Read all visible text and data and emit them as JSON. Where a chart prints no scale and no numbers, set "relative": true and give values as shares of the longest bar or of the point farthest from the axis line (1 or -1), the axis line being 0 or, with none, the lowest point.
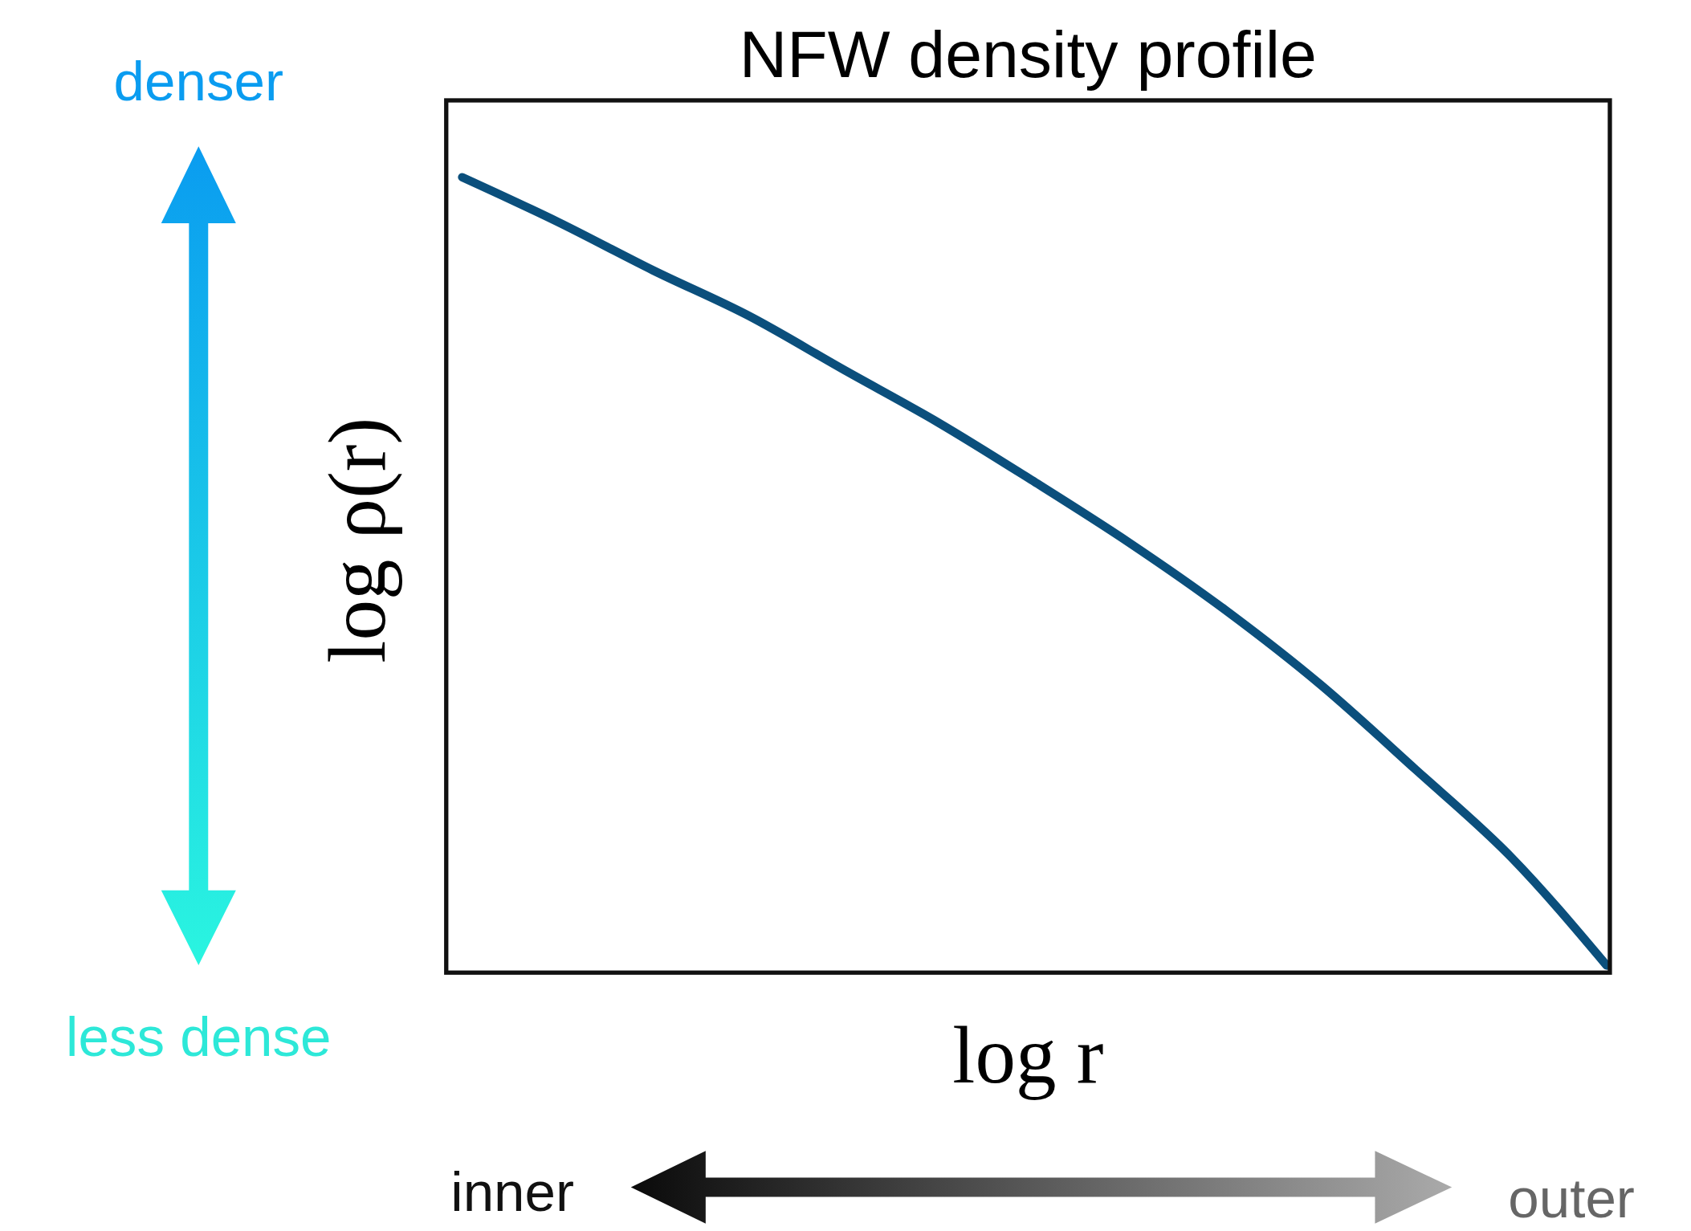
{
  "chart_data": {
    "type": "line",
    "title": "NFW density profile",
    "xlabel": "log r",
    "ylabel": "log ρ(r)",
    "relative": true,
    "line_style": "solid",
    "categories": [
      null,
      null,
      null,
      null,
      null,
      null,
      null,
      null,
      null,
      null,
      null,
      null,
      null
    ],
    "series": [
      {
        "color": "#0b4f7c",
        "values": [
          1.0,
          0.944,
          0.883,
          0.826,
          0.758,
          0.691,
          0.617,
          0.54,
          0.456,
          0.362,
          0.255,
          0.145,
          0.009
        ]
      }
    ],
    "annotations": [
      "denser",
      "less dense",
      "inner",
      "outer"
    ]
  }
}
